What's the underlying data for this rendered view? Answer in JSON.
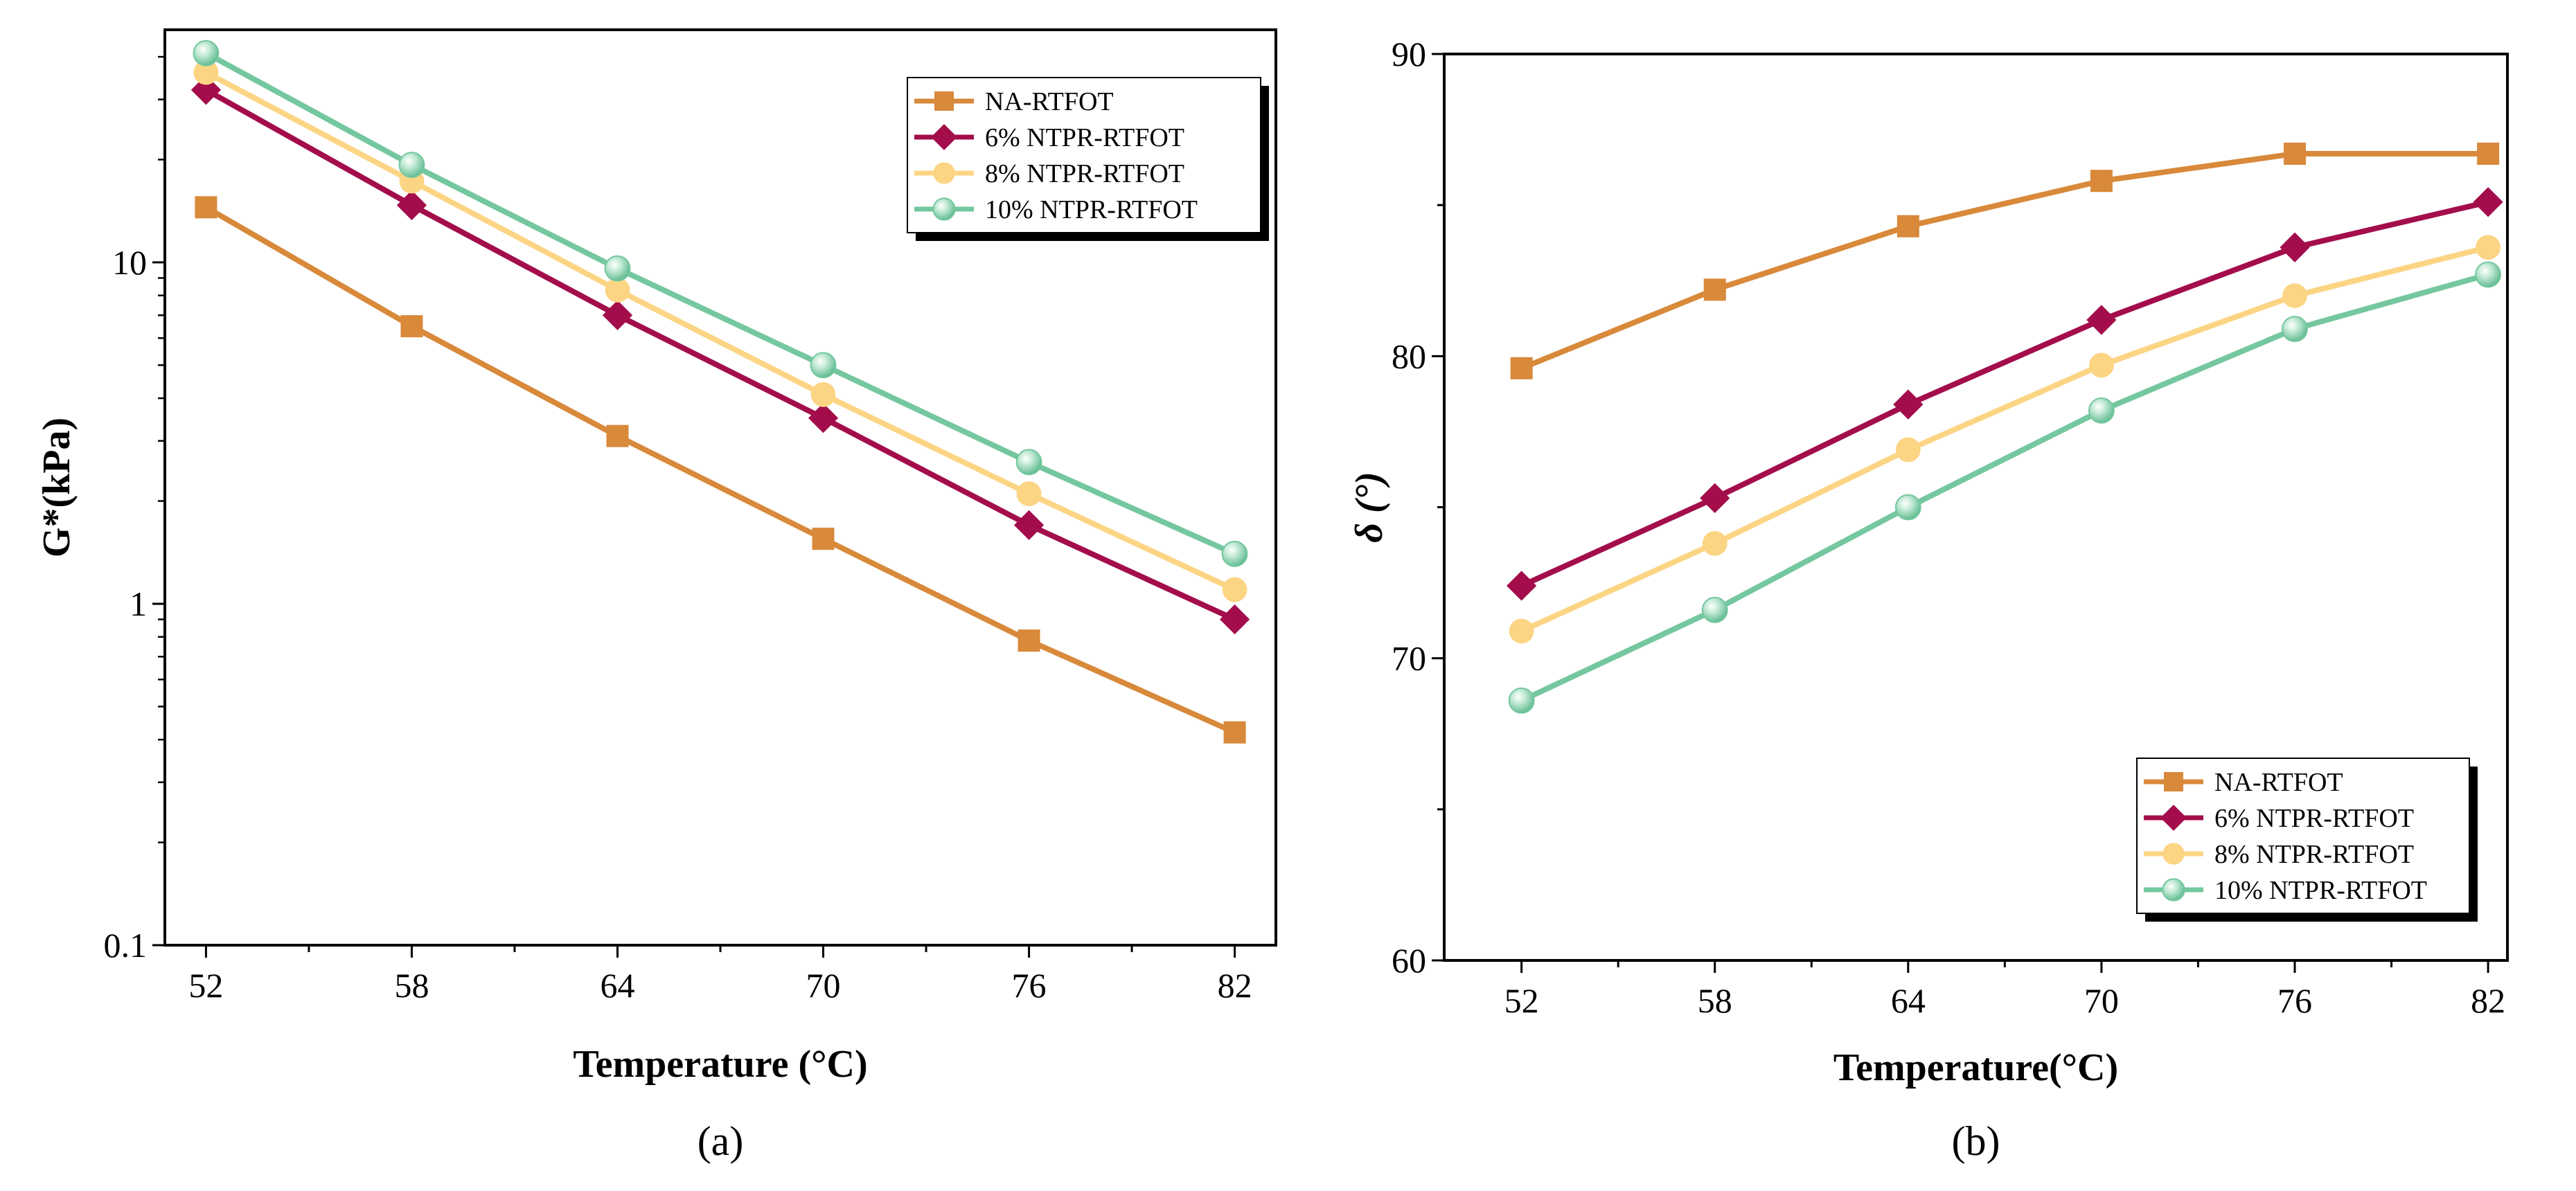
{
  "colors": {
    "NA-RTFOT": "#d8893a",
    "6% NTPR-RTFOT": "#a30d4b",
    "8% NTPR-RTFOT": "#fcd584",
    "10% NTPR-RTFOT": "#74c79e"
  },
  "chart_data": [
    {
      "panel_label": "(a)",
      "type": "line",
      "x_scale": "linear",
      "y_scale": "log",
      "xlabel": "Temperature (°C)",
      "ylabel": "G*(kPa)",
      "x": [
        52,
        58,
        64,
        70,
        76,
        82
      ],
      "x_ticks": [
        "52",
        "58",
        "64",
        "70",
        "76",
        "82"
      ],
      "xlim": [
        50.8,
        83.2
      ],
      "ylim": [
        0.1,
        48
      ],
      "y_ticks": [
        {
          "value": 0.1,
          "label": "0.1"
        },
        {
          "value": 1,
          "label": "1"
        },
        {
          "value": 10,
          "label": "10"
        }
      ],
      "legend_position": "top-right",
      "series": [
        {
          "name": "NA-RTFOT",
          "marker": "square",
          "values": [
            14.5,
            6.5,
            3.1,
            1.55,
            0.78,
            0.42
          ]
        },
        {
          "name": "6% NTPR-RTFOT",
          "marker": "diamond",
          "values": [
            32,
            14.7,
            7.0,
            3.5,
            1.7,
            0.9
          ]
        },
        {
          "name": "8% NTPR-RTFOT",
          "marker": "circle",
          "values": [
            36,
            17.3,
            8.3,
            4.1,
            2.1,
            1.1
          ]
        },
        {
          "name": "10% NTPR-RTFOT",
          "marker": "sphere",
          "values": [
            41,
            19.3,
            9.6,
            5.0,
            2.6,
            1.4
          ]
        }
      ]
    },
    {
      "panel_label": "(b)",
      "type": "line",
      "x_scale": "linear",
      "y_scale": "linear",
      "xlabel": "Temperature(°C)",
      "ylabel": "δ (°)",
      "x": [
        52,
        58,
        64,
        70,
        76,
        82
      ],
      "x_ticks": [
        "52",
        "58",
        "64",
        "70",
        "76",
        "82"
      ],
      "xlim": [
        49.6,
        82.6
      ],
      "ylim": [
        60,
        90
      ],
      "y_ticks": [
        {
          "value": 60,
          "label": "60"
        },
        {
          "value": 70,
          "label": "70"
        },
        {
          "value": 80,
          "label": "80"
        },
        {
          "value": 90,
          "label": "90"
        }
      ],
      "legend_position": "bottom-right",
      "series": [
        {
          "name": "NA-RTFOT",
          "marker": "square",
          "values": [
            79.6,
            82.2,
            84.3,
            85.8,
            86.7,
            86.7
          ]
        },
        {
          "name": "6% NTPR-RTFOT",
          "marker": "diamond",
          "values": [
            72.4,
            75.3,
            78.4,
            81.2,
            83.6,
            85.1
          ]
        },
        {
          "name": "8% NTPR-RTFOT",
          "marker": "circle",
          "values": [
            70.9,
            73.8,
            76.9,
            79.7,
            82.0,
            83.6
          ]
        },
        {
          "name": "10% NTPR-RTFOT",
          "marker": "sphere",
          "values": [
            68.6,
            71.6,
            75.0,
            78.2,
            80.9,
            82.7
          ]
        }
      ]
    }
  ]
}
